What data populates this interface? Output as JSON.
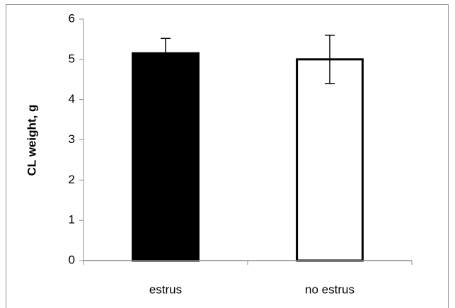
{
  "chart_data": {
    "type": "bar",
    "categories": [
      "estrus",
      "no estrus"
    ],
    "values": [
      5.15,
      5.0
    ],
    "errors": [
      0.37,
      0.6
    ],
    "colors": [
      "#000000",
      "#ffffff"
    ],
    "y_label": "CL weight, g",
    "ylim": [
      0,
      6
    ],
    "yticks": [
      0,
      1,
      2,
      3,
      4,
      5,
      6
    ]
  }
}
